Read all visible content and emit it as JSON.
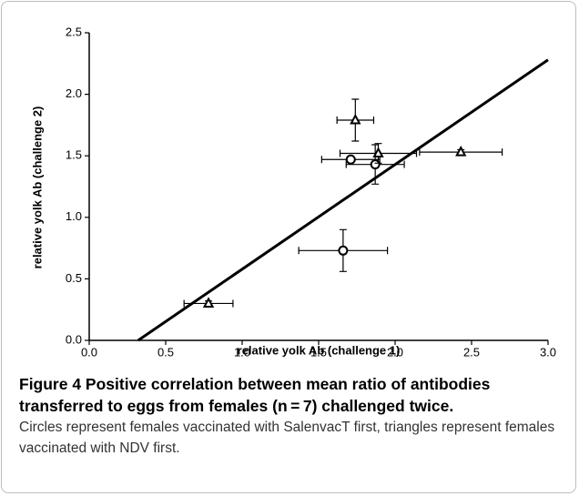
{
  "chart_data": {
    "type": "scatter",
    "x_label": "relative yolk Ab (challenge 1)",
    "y_label": "relative yolk Ab (challenge 2)",
    "xlim": [
      0,
      3
    ],
    "ylim": [
      0,
      2.5
    ],
    "xticks": [
      {
        "value": 0,
        "label": "0.0"
      },
      {
        "value": 0.5,
        "label": "0.5"
      },
      {
        "value": 1,
        "label": "1.0"
      },
      {
        "value": 1.5,
        "label": "1.5"
      },
      {
        "value": 2,
        "label": "2.0"
      },
      {
        "value": 2.5,
        "label": "2.5"
      },
      {
        "value": 3,
        "label": "3.0"
      }
    ],
    "yticks": [
      {
        "value": 0,
        "label": "0.0"
      },
      {
        "value": 0.5,
        "label": "0.5"
      },
      {
        "value": 1,
        "label": "1.0"
      },
      {
        "value": 1.5,
        "label": "1.5"
      },
      {
        "value": 2,
        "label": "2.0"
      },
      {
        "value": 2.5,
        "label": "2.5"
      }
    ],
    "series": [
      {
        "marker": "circle",
        "color": "#000000",
        "x": [
          1.71,
          1.87,
          1.66
        ],
        "values": [
          1.47,
          1.43,
          0.73
        ],
        "x_err": [
          0.19,
          0.19,
          0.29
        ],
        "y_err": [
          0.02,
          0.16,
          0.17
        ]
      },
      {
        "marker": "triangle",
        "color": "#000000",
        "x": [
          0.78,
          1.74,
          1.89,
          2.43
        ],
        "values": [
          0.3,
          1.79,
          1.52,
          1.53
        ],
        "x_err": [
          0.16,
          0.12,
          0.25,
          0.27
        ],
        "y_err": [
          0.02,
          0.17,
          0.08,
          0.02
        ]
      }
    ],
    "fit_line": {
      "color": "#000000",
      "x": [
        0.32,
        3.0
      ],
      "y": [
        0,
        2.28
      ]
    }
  },
  "caption": {
    "title": "Figure 4 Positive correlation between mean ratio of antibodies transferred to eggs from females (n = 7) challenged twice.",
    "text": "Circles represent females vaccinated with SalenvacT first, triangles represent females vaccinated with NDV first."
  }
}
